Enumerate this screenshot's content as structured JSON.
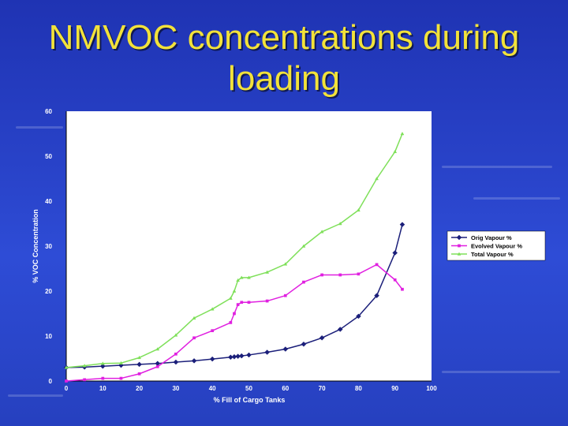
{
  "slide": {
    "title_line1": "NMVOC concentrations during",
    "title_line2": "loading"
  },
  "colors": {
    "background": "#2a45cc",
    "title": "#f2e23a",
    "orig": "#1b1f7a",
    "evolved": "#e020e0",
    "total": "#7fe05a"
  },
  "chart_data": {
    "type": "line",
    "xlabel": "% Fill of Cargo Tanks",
    "ylabel": "% VOC Concentration",
    "xlim": [
      0,
      100
    ],
    "ylim": [
      0,
      60
    ],
    "x_ticks": [
      "0",
      "10",
      "20",
      "30",
      "40",
      "50",
      "60",
      "70",
      "80",
      "90",
      "100"
    ],
    "y_ticks": [
      "0",
      "10",
      "20",
      "30",
      "40",
      "50",
      "60"
    ],
    "legend_position": "right",
    "series": [
      {
        "name": "Orig Vapour %",
        "color": "#1b1f7a",
        "marker": "diamond",
        "x": [
          0,
          5,
          10,
          15,
          20,
          25,
          30,
          35,
          40,
          45,
          46,
          47,
          48,
          50,
          55,
          60,
          65,
          70,
          75,
          80,
          85,
          90,
          92
        ],
        "y": [
          3.0,
          3.1,
          3.3,
          3.5,
          3.7,
          3.9,
          4.2,
          4.5,
          4.9,
          5.3,
          5.4,
          5.5,
          5.6,
          5.8,
          6.4,
          7.1,
          8.2,
          9.6,
          11.5,
          14.4,
          19.0,
          28.5,
          34.8
        ]
      },
      {
        "name": "Evolved Vapour %",
        "color": "#e020e0",
        "marker": "square",
        "x": [
          0,
          5,
          10,
          15,
          20,
          25,
          30,
          35,
          40,
          45,
          46,
          47,
          48,
          50,
          55,
          60,
          65,
          70,
          75,
          80,
          85,
          90,
          92
        ],
        "y": [
          0.0,
          0.3,
          0.6,
          0.6,
          1.6,
          3.2,
          6.0,
          9.6,
          11.2,
          13.0,
          15.0,
          17.0,
          17.5,
          17.5,
          17.8,
          19.0,
          22.0,
          23.6,
          23.6,
          23.8,
          25.9,
          22.5,
          20.4
        ]
      },
      {
        "name": "Total Vapour %",
        "color": "#7fe05a",
        "marker": "triangle",
        "x": [
          0,
          5,
          10,
          15,
          20,
          25,
          30,
          35,
          40,
          45,
          46,
          47,
          48,
          50,
          55,
          60,
          65,
          70,
          75,
          80,
          85,
          90,
          92
        ],
        "y": [
          3.0,
          3.4,
          3.9,
          4.0,
          5.2,
          7.1,
          10.2,
          14.0,
          16.0,
          18.4,
          20.0,
          22.4,
          23.0,
          23.0,
          24.2,
          26.0,
          30.0,
          33.2,
          35.0,
          38.0,
          45.0,
          51.0,
          55.0
        ]
      }
    ]
  }
}
